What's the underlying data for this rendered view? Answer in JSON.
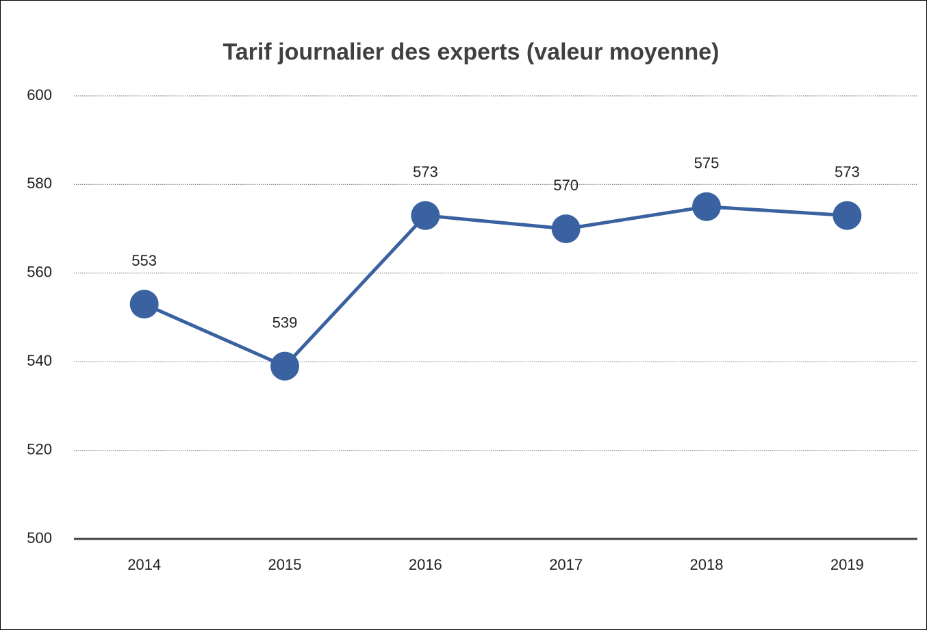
{
  "chart_data": {
    "type": "line",
    "title": "Tarif journalier des experts (valeur moyenne)",
    "categories": [
      "2014",
      "2015",
      "2016",
      "2017",
      "2018",
      "2019"
    ],
    "values": [
      553,
      539,
      573,
      570,
      575,
      573
    ],
    "color": "#3a62a0",
    "ylim": [
      500,
      600
    ],
    "yticks": [
      500,
      520,
      540,
      560,
      580,
      600
    ],
    "grid": true
  }
}
